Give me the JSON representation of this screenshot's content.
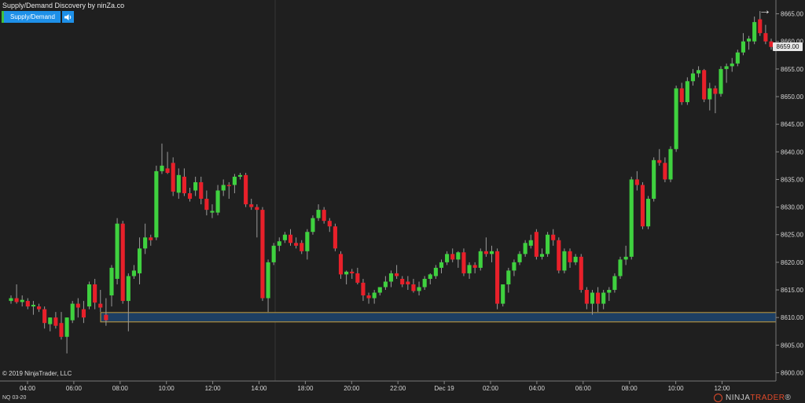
{
  "header": {
    "title": "Supply/Demand Discovery by ninZa.co",
    "button_label": "Supply/Demand"
  },
  "footer": {
    "copyright": "© 2019 NinjaTrader, LLC",
    "instrument": "NQ 03-20",
    "logo_part1": "NINJA",
    "logo_part2": "TRADER",
    "logo_suffix": "®"
  },
  "colors": {
    "background": "#1f1f1f",
    "bull": "#3fd13f",
    "bear": "#e8202a",
    "zone_fill": "#1d3f63",
    "zone_border": "#c8a040",
    "button": "#1e90e8"
  },
  "chart_data": {
    "type": "candlestick",
    "x_ticks": [
      "04:00",
      "06:00",
      "08:00",
      "10:00",
      "12:00",
      "14:00",
      "18:00",
      "20:00",
      "22:00",
      "Dec 19",
      "02:00",
      "04:00",
      "06:00",
      "08:00",
      "10:00",
      "12:00"
    ],
    "y_ticks": [
      "8665.00",
      "8660.00",
      "8655.00",
      "8650.00",
      "8645.00",
      "8640.00",
      "8635.00",
      "8630.00",
      "8625.00",
      "8620.00",
      "8615.00",
      "8610.00",
      "8605.00",
      "8600.00"
    ],
    "ylim": [
      8598.5,
      8667.5
    ],
    "last_price": "8659.00",
    "demand_zone": {
      "low": 8609.2,
      "high": 8610.9
    },
    "candles": [
      [
        8613,
        8614,
        8612.5,
        8613.5
      ],
      [
        8613.5,
        8616,
        8612.5,
        8612.8
      ],
      [
        8612.8,
        8614,
        8612,
        8613.2
      ],
      [
        8613,
        8613.5,
        8611.5,
        8612
      ],
      [
        8612,
        8613,
        8610.5,
        8612.3
      ],
      [
        8612,
        8612.5,
        8611,
        8611.5
      ],
      [
        8611.5,
        8612,
        8608,
        8609
      ],
      [
        8608.8,
        8610,
        8607.5,
        8610
      ],
      [
        8610,
        8611,
        8608,
        8608.5
      ],
      [
        8609,
        8611,
        8606,
        8606.5
      ],
      [
        8606.5,
        8610,
        8603.5,
        8610
      ],
      [
        8609.5,
        8613,
        8609,
        8612.5
      ],
      [
        8612.5,
        8613.5,
        8610,
        8611.8
      ],
      [
        8611.5,
        8613,
        8609,
        8610
      ],
      [
        8612,
        8616.5,
        8611.5,
        8616
      ],
      [
        8616,
        8617,
        8611.5,
        8612.7
      ],
      [
        8612.5,
        8615,
        8611,
        8611.8
      ],
      [
        8610.5,
        8613.5,
        8608.5,
        8609.5
      ],
      [
        8614,
        8619.5,
        8612,
        8619
      ],
      [
        8617,
        8628,
        8616,
        8627
      ],
      [
        8627,
        8627.5,
        8612.5,
        8613
      ],
      [
        8613,
        8618,
        8607.5,
        8617.5
      ],
      [
        8617.5,
        8619.5,
        8617,
        8618.5
      ],
      [
        8618,
        8624.5,
        8616,
        8622.5
      ],
      [
        8622.5,
        8627,
        8621.5,
        8624.5
      ],
      [
        8624.5,
        8625,
        8623,
        8624
      ],
      [
        8624.5,
        8637.5,
        8624,
        8636.5
      ],
      [
        8636.5,
        8641.5,
        8636,
        8637.5
      ],
      [
        8637,
        8640,
        8636,
        8636.2
      ],
      [
        8638,
        8639,
        8632,
        8632.8
      ],
      [
        8632.6,
        8637,
        8631.5,
        8635.8
      ],
      [
        8635.5,
        8637,
        8632,
        8632.5
      ],
      [
        8632.5,
        8633.5,
        8631,
        8631.5
      ],
      [
        8633,
        8635.5,
        8632,
        8634.5
      ],
      [
        8634.5,
        8635.5,
        8630.5,
        8631.5
      ],
      [
        8631.5,
        8633,
        8628.5,
        8629.5
      ],
      [
        8629,
        8630.5,
        8628,
        8629.3
      ],
      [
        8629,
        8634,
        8628.5,
        8633
      ],
      [
        8633,
        8635,
        8632,
        8634
      ],
      [
        8634,
        8634.5,
        8631.5,
        8633.8
      ],
      [
        8634,
        8636,
        8632.5,
        8635.5
      ],
      [
        8635.5,
        8636.2,
        8635,
        8635.8
      ],
      [
        8635.8,
        8636.2,
        8630,
        8630.5
      ],
      [
        8630.5,
        8631.5,
        8629.5,
        8630
      ],
      [
        8630,
        8630.5,
        8624.5,
        8629.5
      ],
      [
        8629.5,
        8630,
        8613,
        8613.5
      ],
      [
        8613.5,
        8620.5,
        8611,
        8620
      ],
      [
        8620,
        8623.5,
        8619.5,
        8623
      ],
      [
        8623,
        8624.5,
        8622,
        8623.8
      ],
      [
        8624,
        8625.5,
        8623.5,
        8625
      ],
      [
        8625,
        8626,
        8623,
        8623.5
      ],
      [
        8623.5,
        8624.5,
        8622.5,
        8623
      ],
      [
        8623.5,
        8624,
        8621.5,
        8622
      ],
      [
        8622,
        8626,
        8620.5,
        8625.5
      ],
      [
        8625.5,
        8628.5,
        8625,
        8628
      ],
      [
        8628,
        8630.5,
        8627.5,
        8629.5
      ],
      [
        8629.5,
        8630,
        8627,
        8627.5
      ],
      [
        8627.5,
        8628,
        8625.5,
        8626.5
      ],
      [
        8626.5,
        8627,
        8622,
        8622.5
      ],
      [
        8621.5,
        8622,
        8617,
        8617.8
      ],
      [
        8617.8,
        8618.5,
        8616,
        8618.3
      ],
      [
        8618.3,
        8618.8,
        8617,
        8618
      ],
      [
        8618,
        8619,
        8616,
        8616.3
      ],
      [
        8616.3,
        8617,
        8613,
        8614
      ],
      [
        8614,
        8614.5,
        8612.5,
        8613.5
      ],
      [
        8613.5,
        8615,
        8612.5,
        8614.5
      ],
      [
        8614.5,
        8615.5,
        8614,
        8615.5
      ],
      [
        8615.5,
        8617.5,
        8615,
        8616.5
      ],
      [
        8616.5,
        8618.5,
        8615.5,
        8618
      ],
      [
        8618,
        8619.5,
        8617,
        8617.5
      ],
      [
        8617,
        8617.5,
        8615.5,
        8616
      ],
      [
        8616.5,
        8617.5,
        8615,
        8616
      ],
      [
        8616,
        8617,
        8614.5,
        8614.8
      ],
      [
        8614.8,
        8616.5,
        8614,
        8615.5
      ],
      [
        8615.5,
        8617.5,
        8615,
        8617
      ],
      [
        8617,
        8618,
        8616,
        8617.8
      ],
      [
        8617.5,
        8619.5,
        8617,
        8619
      ],
      [
        8619,
        8620.5,
        8618,
        8620
      ],
      [
        8620,
        8622,
        8619.5,
        8621.5
      ],
      [
        8621.5,
        8622.5,
        8620,
        8620.5
      ],
      [
        8620.5,
        8622,
        8619,
        8621.8
      ],
      [
        8621.8,
        8622.5,
        8617.5,
        8618
      ],
      [
        8618,
        8620,
        8617,
        8619.5
      ],
      [
        8619.5,
        8620,
        8618,
        8619
      ],
      [
        8619,
        8622.5,
        8618.5,
        8622
      ],
      [
        8622,
        8624.5,
        8621,
        8621.5
      ],
      [
        8621.5,
        8623,
        8620,
        8622
      ],
      [
        8622,
        8622.5,
        8611.5,
        8612.5
      ],
      [
        8612.5,
        8616,
        8612,
        8616
      ],
      [
        8616,
        8619,
        8614.5,
        8618.5
      ],
      [
        8618.5,
        8620.5,
        8617.5,
        8620
      ],
      [
        8620,
        8622,
        8619.5,
        8621.5
      ],
      [
        8621.5,
        8624,
        8621,
        8623.5
      ],
      [
        8623,
        8625,
        8622.5,
        8624
      ],
      [
        8625.5,
        8626,
        8620.5,
        8621
      ],
      [
        8621,
        8622.5,
        8620.5,
        8621.5
      ],
      [
        8621.5,
        8625.5,
        8621,
        8625
      ],
      [
        8625,
        8626,
        8623,
        8624
      ],
      [
        8624,
        8624.5,
        8618,
        8618.5
      ],
      [
        8618.5,
        8622.5,
        8618,
        8622
      ],
      [
        8622,
        8622.5,
        8619,
        8620
      ],
      [
        8620,
        8621.5,
        8619.5,
        8621
      ],
      [
        8621,
        8621.5,
        8614.5,
        8615
      ],
      [
        8615,
        8615.5,
        8611.5,
        8612.5
      ],
      [
        8612.5,
        8615,
        8610.5,
        8614.5
      ],
      [
        8614.5,
        8615.5,
        8611,
        8612.5
      ],
      [
        8612.5,
        8615,
        8611.5,
        8614.5
      ],
      [
        8614.5,
        8615.5,
        8613,
        8615
      ],
      [
        8615,
        8618,
        8614.5,
        8617.5
      ],
      [
        8617.5,
        8621,
        8617,
        8620.5
      ],
      [
        8620.5,
        8623,
        8619.5,
        8621
      ],
      [
        8621,
        8635.5,
        8620.5,
        8635
      ],
      [
        8635,
        8636.5,
        8633,
        8634
      ],
      [
        8634,
        8634.5,
        8626,
        8626.5
      ],
      [
        8626.5,
        8632,
        8626,
        8631.5
      ],
      [
        8631.5,
        8639,
        8631,
        8638.5
      ],
      [
        8638.5,
        8640.5,
        8637.5,
        8638
      ],
      [
        8638,
        8639,
        8634.5,
        8635
      ],
      [
        8635,
        8641,
        8634.5,
        8640.5
      ],
      [
        8640.5,
        8652,
        8640,
        8651.5
      ],
      [
        8651.5,
        8652.5,
        8648.5,
        8649
      ],
      [
        8649,
        8653.5,
        8648.5,
        8652.8
      ],
      [
        8652.8,
        8655,
        8652,
        8654.2
      ],
      [
        8654.2,
        8655.5,
        8653.5,
        8654.8
      ],
      [
        8654.8,
        8655,
        8649,
        8649.5
      ],
      [
        8649.5,
        8652.5,
        8647.5,
        8651.5
      ],
      [
        8651.5,
        8652,
        8647,
        8650.5
      ],
      [
        8650.5,
        8655.5,
        8650,
        8655
      ],
      [
        8655,
        8656,
        8652.5,
        8655.5
      ],
      [
        8655.5,
        8657,
        8654.5,
        8656
      ],
      [
        8656,
        8658.5,
        8655.5,
        8658
      ],
      [
        8658,
        8661.5,
        8657.5,
        8660
      ],
      [
        8660,
        8661,
        8658.5,
        8660.5
      ],
      [
        8660,
        8664.5,
        8659.5,
        8663.5
      ],
      [
        8664,
        8665.5,
        8661,
        8661.5
      ],
      [
        8661.5,
        8663,
        8659.5,
        8660
      ],
      [
        8660,
        8660.5,
        8658.5,
        8659
      ]
    ]
  }
}
